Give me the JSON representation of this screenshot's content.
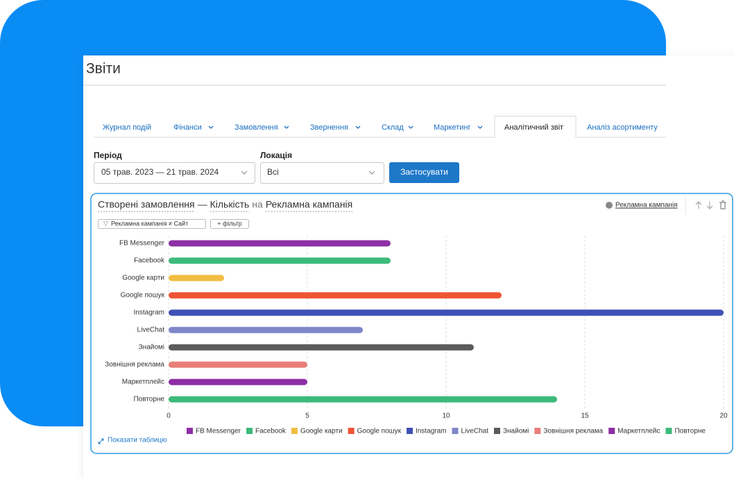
{
  "header": {
    "title": "Звіти"
  },
  "tabs": [
    "Журнал подій",
    "Фінанси",
    "Замовлення",
    "Звернення",
    "Склад",
    "Маркетинг",
    "Аналітичний звіт",
    "Аналіз асортименту"
  ],
  "active_tab": 6,
  "filters": {
    "period_label": "Період",
    "period_value": "05 трав. 2023 — 21 трав. 2024",
    "location_label": "Локація",
    "location_value": "Всі",
    "apply_button": "Застосувати"
  },
  "widget": {
    "group_by": "Рекламна кампанія",
    "chips": [
      "Рекламна кампанія ≠ Сайт",
      "+ фільтр"
    ],
    "show_table": "Показати таблицю"
  },
  "chart_data": {
    "type": "hbar",
    "title_parts": [
      "Створені замовлення",
      "—",
      "Кількість",
      "на",
      "Рекламна кампанія"
    ],
    "categories": [
      "FB Messenger",
      "Facebook",
      "Google карти",
      "Google пошук",
      "Instagram",
      "LiveChat",
      "Знайомі",
      "Зовнішня реклама",
      "Маркетплейс",
      "Повторне"
    ],
    "values": [
      8,
      8,
      2,
      12,
      20,
      7,
      11,
      5,
      5,
      14
    ],
    "colors": [
      "#8e2fa6",
      "#3dba7b",
      "#f2bd42",
      "#ef5434",
      "#3f51b5",
      "#7f86c9",
      "#5a5a5a",
      "#e87f78",
      "#8e2fa6",
      "#3dba7b"
    ],
    "xlim": [
      0,
      20
    ],
    "xticks": [
      0,
      5,
      10,
      15,
      20
    ],
    "grid": true,
    "legend": "bottom"
  }
}
